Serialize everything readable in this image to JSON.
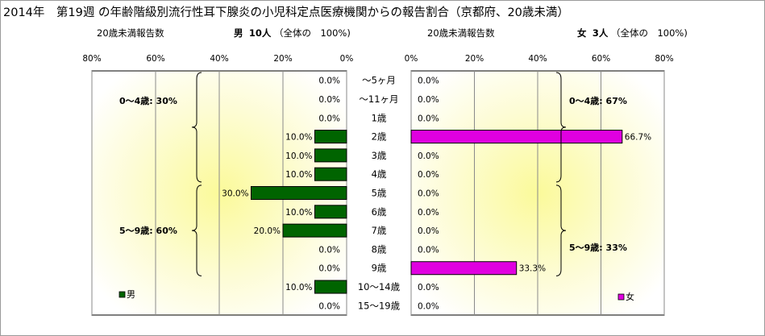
{
  "title": "2014年　第19週 の年齢階級別流行性耳下腺炎の小児科定点医療機関からの報告割合（京都府、20歳未満）",
  "male_header": {
    "subtitle": "20歳未満報告数",
    "label": "男",
    "count": "10人",
    "note": "（全体の　100%)"
  },
  "female_header": {
    "subtitle": "20歳未満報告数",
    "label": "女",
    "count": "3人",
    "note": "（全体の　100%)"
  },
  "chart_data": {
    "type": "bar",
    "orientation": "horizontal-butterfly",
    "categories": [
      "～5ヶ月",
      "～11ヶ月",
      "1歳",
      "2歳",
      "3歳",
      "4歳",
      "5歳",
      "6歳",
      "7歳",
      "8歳",
      "9歳",
      "10～14歳",
      "15～19歳"
    ],
    "series": [
      {
        "name": "男",
        "color": "#006400",
        "values": [
          0.0,
          0.0,
          0.0,
          10.0,
          10.0,
          10.0,
          30.0,
          10.0,
          20.0,
          0.0,
          0.0,
          10.0,
          0.0
        ],
        "value_labels": [
          "0.0%",
          "0.0%",
          "0.0%",
          "10.0%",
          "10.0%",
          "10.0%",
          "30.0%",
          "10.0%",
          "20.0%",
          "0.0%",
          "0.0%",
          "10.0%",
          "0.0%"
        ]
      },
      {
        "name": "女",
        "color": "#e000e0",
        "values": [
          0.0,
          0.0,
          0.0,
          66.7,
          0.0,
          0.0,
          0.0,
          0.0,
          0.0,
          0.0,
          33.3,
          0.0,
          0.0
        ],
        "value_labels": [
          "0.0%",
          "0.0%",
          "0.0%",
          "66.7%",
          "0.0%",
          "0.0%",
          "0.0%",
          "0.0%",
          "0.0%",
          "0.0%",
          "33.3%",
          "0.0%",
          "0.0%"
        ]
      }
    ],
    "xlim": [
      0,
      80
    ],
    "male_ticks": [
      "80%",
      "60%",
      "40%",
      "20%",
      "0%"
    ],
    "female_ticks": [
      "0%",
      "20%",
      "40%",
      "60%",
      "80%"
    ],
    "grid": true,
    "legend": "bottom-inside",
    "annotations": {
      "male_0_4": "0～4歳: 30%",
      "male_5_9": "5～9歳: 60%",
      "female_0_4": "0～4歳: 67%",
      "female_5_9": "5～9歳: 33%"
    }
  },
  "legend": {
    "male": "男",
    "female": "女"
  }
}
